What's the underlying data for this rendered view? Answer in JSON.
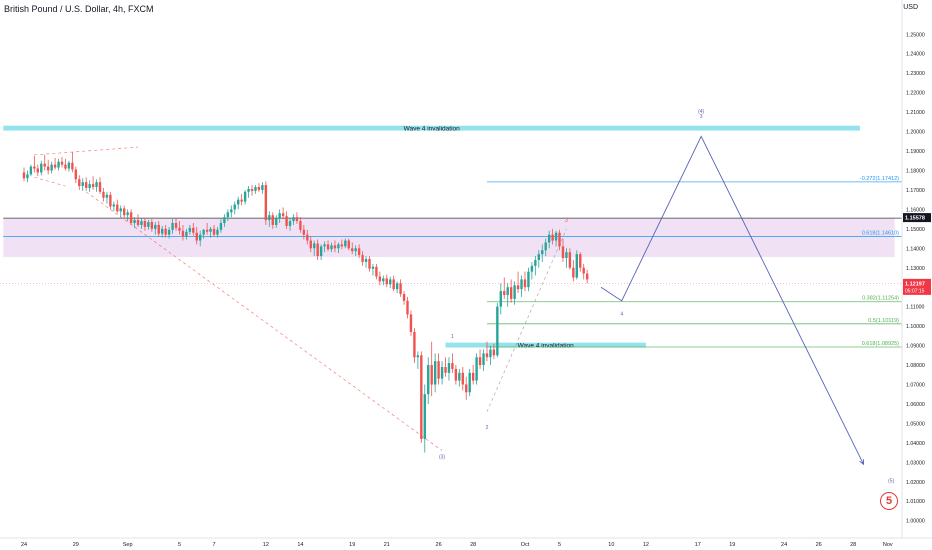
{
  "header": {
    "symbol_title": "British Pound / U.S. Dollar, 4h, FXCM",
    "currency": "USD"
  },
  "colors": {
    "bull": "#26a69a",
    "bear": "#ef5350",
    "invalidation_zone": "#8ee0ea",
    "resistance_zone": "#ead6f0",
    "fib_blue": "#2196f3",
    "fib_green": "#4caf50",
    "wave_path": "#5a62b8",
    "current_price_tag": "#f23645",
    "level_tag": "#131722",
    "logo": "#e03a3a"
  },
  "logo": {
    "glyph": "5"
  },
  "chart_data": {
    "type": "candlestick",
    "title": "British Pound / U.S. Dollar, 4h, FXCM",
    "xlabel": "",
    "ylabel": "USD",
    "ylim": [
      0.9965,
      1.2635
    ],
    "grid": false,
    "y_ticks": [
      "1.25000",
      "1.24000",
      "1.23000",
      "1.22000",
      "1.21000",
      "1.20000",
      "1.19000",
      "1.18000",
      "1.17000",
      "1.16000",
      "1.15000",
      "1.14000",
      "1.13000",
      "1.12000",
      "1.11000",
      "1.10000",
      "1.09000",
      "1.08000",
      "1.07000",
      "1.06000",
      "1.05000",
      "1.04000",
      "1.03000",
      "1.02000",
      "1.01000",
      "1.00000"
    ],
    "x_ticks": [
      {
        "label": "24",
        "i": 0
      },
      {
        "label": "29",
        "i": 15
      },
      {
        "label": "Sep",
        "i": 30
      },
      {
        "label": "5",
        "i": 45
      },
      {
        "label": "7",
        "i": 55
      },
      {
        "label": "12",
        "i": 70
      },
      {
        "label": "14",
        "i": 80
      },
      {
        "label": "19",
        "i": 95
      },
      {
        "label": "21",
        "i": 105
      },
      {
        "label": "26",
        "i": 120
      },
      {
        "label": "28",
        "i": 130
      },
      {
        "label": "Oct",
        "i": 145
      },
      {
        "label": "5",
        "i": 155
      },
      {
        "label": "10",
        "i": 170
      },
      {
        "label": "12",
        "i": 180
      },
      {
        "label": "17",
        "i": 195
      },
      {
        "label": "19",
        "i": 205
      },
      {
        "label": "24",
        "i": 220
      },
      {
        "label": "26",
        "i": 230
      },
      {
        "label": "28",
        "i": 240
      },
      {
        "label": "Nov",
        "i": 250
      }
    ],
    "candles": [
      [
        1.179,
        1.1815,
        1.1745,
        1.176
      ],
      [
        1.176,
        1.18,
        1.174,
        1.178
      ],
      [
        1.178,
        1.183,
        1.177,
        1.182
      ],
      [
        1.182,
        1.1875,
        1.179,
        1.181
      ],
      [
        1.181,
        1.183,
        1.177,
        1.179
      ],
      [
        1.179,
        1.185,
        1.1775,
        1.1835
      ],
      [
        1.1835,
        1.188,
        1.18,
        1.182
      ],
      [
        1.182,
        1.1855,
        1.178,
        1.18
      ],
      [
        1.18,
        1.1845,
        1.1785,
        1.183
      ],
      [
        1.183,
        1.1865,
        1.1805,
        1.1815
      ],
      [
        1.1815,
        1.186,
        1.18,
        1.1845
      ],
      [
        1.1845,
        1.187,
        1.1815,
        1.183
      ],
      [
        1.183,
        1.186,
        1.18,
        1.181
      ],
      [
        1.181,
        1.185,
        1.1795,
        1.184
      ],
      [
        1.184,
        1.1895,
        1.179,
        1.1805
      ],
      [
        1.1805,
        1.182,
        1.1735,
        1.1755
      ],
      [
        1.1755,
        1.1775,
        1.17,
        1.172
      ],
      [
        1.172,
        1.176,
        1.1695,
        1.174
      ],
      [
        1.174,
        1.1765,
        1.1695,
        1.171
      ],
      [
        1.171,
        1.175,
        1.169,
        1.173
      ],
      [
        1.173,
        1.177,
        1.17,
        1.1715
      ],
      [
        1.1715,
        1.1755,
        1.169,
        1.174
      ],
      [
        1.174,
        1.1765,
        1.168,
        1.169
      ],
      [
        1.169,
        1.171,
        1.164,
        1.166
      ],
      [
        1.166,
        1.169,
        1.163,
        1.1675
      ],
      [
        1.1675,
        1.169,
        1.16,
        1.1615
      ],
      [
        1.1615,
        1.164,
        1.159,
        1.1625
      ],
      [
        1.1625,
        1.165,
        1.158,
        1.159
      ],
      [
        1.159,
        1.162,
        1.156,
        1.1605
      ],
      [
        1.1605,
        1.162,
        1.155,
        1.157
      ],
      [
        1.157,
        1.16,
        1.154,
        1.1585
      ],
      [
        1.1585,
        1.16,
        1.152,
        1.153
      ],
      [
        1.153,
        1.156,
        1.1505,
        1.1545
      ],
      [
        1.1545,
        1.1575,
        1.151,
        1.152
      ],
      [
        1.152,
        1.1555,
        1.15,
        1.154
      ],
      [
        1.154,
        1.1555,
        1.149,
        1.151
      ],
      [
        1.151,
        1.1545,
        1.1495,
        1.1535
      ],
      [
        1.1535,
        1.155,
        1.1485,
        1.15
      ],
      [
        1.15,
        1.1535,
        1.147,
        1.152
      ],
      [
        1.152,
        1.154,
        1.146,
        1.1475
      ],
      [
        1.1475,
        1.1515,
        1.1455,
        1.15
      ],
      [
        1.15,
        1.152,
        1.1455,
        1.147
      ],
      [
        1.147,
        1.151,
        1.145,
        1.1495
      ],
      [
        1.1495,
        1.155,
        1.1475,
        1.153
      ],
      [
        1.153,
        1.1555,
        1.149,
        1.1505
      ],
      [
        1.1505,
        1.154,
        1.147,
        1.149
      ],
      [
        1.149,
        1.152,
        1.144,
        1.146
      ],
      [
        1.146,
        1.15,
        1.1445,
        1.1485
      ],
      [
        1.1485,
        1.152,
        1.147,
        1.1505
      ],
      [
        1.1505,
        1.153,
        1.1465,
        1.148
      ],
      [
        1.148,
        1.151,
        1.142,
        1.144
      ],
      [
        1.144,
        1.149,
        1.141,
        1.147
      ],
      [
        1.147,
        1.15,
        1.145,
        1.1495
      ],
      [
        1.1495,
        1.153,
        1.147,
        1.1485
      ],
      [
        1.1485,
        1.151,
        1.1455,
        1.15
      ],
      [
        1.15,
        1.152,
        1.146,
        1.147
      ],
      [
        1.147,
        1.151,
        1.1455,
        1.1495
      ],
      [
        1.1495,
        1.155,
        1.148,
        1.153
      ],
      [
        1.153,
        1.1575,
        1.151,
        1.156
      ],
      [
        1.156,
        1.16,
        1.154,
        1.1585
      ],
      [
        1.1585,
        1.162,
        1.156,
        1.16
      ],
      [
        1.16,
        1.164,
        1.1575,
        1.1625
      ],
      [
        1.1625,
        1.1665,
        1.16,
        1.165
      ],
      [
        1.165,
        1.168,
        1.162,
        1.164
      ],
      [
        1.164,
        1.17,
        1.1625,
        1.169
      ],
      [
        1.169,
        1.172,
        1.166,
        1.1705
      ],
      [
        1.1705,
        1.1725,
        1.167,
        1.1695
      ],
      [
        1.1695,
        1.1725,
        1.168,
        1.1715
      ],
      [
        1.1715,
        1.1735,
        1.169,
        1.17
      ],
      [
        1.17,
        1.174,
        1.168,
        1.1725
      ],
      [
        1.1725,
        1.1745,
        1.152,
        1.1545
      ],
      [
        1.1545,
        1.159,
        1.151,
        1.157
      ],
      [
        1.157,
        1.1585,
        1.15,
        1.152
      ],
      [
        1.152,
        1.157,
        1.1505,
        1.1555
      ],
      [
        1.1555,
        1.16,
        1.153,
        1.158
      ],
      [
        1.158,
        1.161,
        1.155,
        1.1565
      ],
      [
        1.1565,
        1.159,
        1.15,
        1.1515
      ],
      [
        1.1515,
        1.1555,
        1.149,
        1.154
      ],
      [
        1.154,
        1.1575,
        1.152,
        1.156
      ],
      [
        1.156,
        1.1585,
        1.1525,
        1.154
      ],
      [
        1.154,
        1.156,
        1.148,
        1.1495
      ],
      [
        1.1495,
        1.152,
        1.1445,
        1.147
      ],
      [
        1.147,
        1.1495,
        1.142,
        1.144
      ],
      [
        1.144,
        1.146,
        1.138,
        1.14
      ],
      [
        1.14,
        1.144,
        1.136,
        1.1425
      ],
      [
        1.1425,
        1.1445,
        1.134,
        1.136
      ],
      [
        1.136,
        1.142,
        1.134,
        1.141
      ],
      [
        1.141,
        1.1435,
        1.138,
        1.142
      ],
      [
        1.142,
        1.144,
        1.1385,
        1.1395
      ],
      [
        1.1395,
        1.143,
        1.138,
        1.1415
      ],
      [
        1.1415,
        1.144,
        1.138,
        1.14
      ],
      [
        1.14,
        1.143,
        1.1375,
        1.142
      ],
      [
        1.142,
        1.1445,
        1.1395,
        1.141
      ],
      [
        1.141,
        1.145,
        1.14,
        1.144
      ],
      [
        1.144,
        1.145,
        1.139,
        1.14
      ],
      [
        1.14,
        1.143,
        1.137,
        1.1385
      ],
      [
        1.1385,
        1.1415,
        1.136,
        1.14
      ],
      [
        1.14,
        1.142,
        1.135,
        1.1365
      ],
      [
        1.1365,
        1.1385,
        1.131,
        1.133
      ],
      [
        1.133,
        1.136,
        1.13,
        1.1345
      ],
      [
        1.1345,
        1.136,
        1.128,
        1.1295
      ],
      [
        1.1295,
        1.132,
        1.126,
        1.1305
      ],
      [
        1.1305,
        1.132,
        1.124,
        1.1255
      ],
      [
        1.1255,
        1.128,
        1.121,
        1.123
      ],
      [
        1.123,
        1.126,
        1.121,
        1.1245
      ],
      [
        1.1245,
        1.1265,
        1.12,
        1.1215
      ],
      [
        1.1215,
        1.1255,
        1.1195,
        1.124
      ],
      [
        1.124,
        1.126,
        1.118,
        1.119
      ],
      [
        1.119,
        1.123,
        1.117,
        1.122
      ],
      [
        1.122,
        1.124,
        1.115,
        1.1165
      ],
      [
        1.1165,
        1.118,
        1.111,
        1.113
      ],
      [
        1.113,
        1.115,
        1.104,
        1.106
      ],
      [
        1.106,
        1.108,
        1.095,
        1.097
      ],
      [
        1.097,
        1.099,
        1.081,
        1.084
      ],
      [
        1.084,
        1.087,
        1.078,
        1.085
      ],
      [
        1.085,
        1.087,
        1.04,
        1.042
      ],
      [
        1.042,
        1.07,
        1.035,
        1.065
      ],
      [
        1.065,
        1.084,
        1.06,
        1.08
      ],
      [
        1.08,
        1.092,
        1.064,
        1.07
      ],
      [
        1.07,
        1.086,
        1.066,
        1.082
      ],
      [
        1.082,
        1.086,
        1.07,
        1.073
      ],
      [
        1.073,
        1.082,
        1.07,
        1.079
      ],
      [
        1.079,
        1.084,
        1.074,
        1.076
      ],
      [
        1.076,
        1.084,
        1.072,
        1.081
      ],
      [
        1.081,
        1.086,
        1.076,
        1.078
      ],
      [
        1.078,
        1.08,
        1.07,
        1.072
      ],
      [
        1.072,
        1.078,
        1.069,
        1.076
      ],
      [
        1.076,
        1.079,
        1.067,
        1.07
      ],
      [
        1.07,
        1.074,
        1.062,
        1.066
      ],
      [
        1.066,
        1.078,
        1.064,
        1.076
      ],
      [
        1.076,
        1.08,
        1.07,
        1.072
      ],
      [
        1.072,
        1.086,
        1.07,
        1.084
      ],
      [
        1.084,
        1.088,
        1.078,
        1.08
      ],
      [
        1.08,
        1.088,
        1.077,
        1.086
      ],
      [
        1.086,
        1.092,
        1.082,
        1.084
      ],
      [
        1.084,
        1.09,
        1.08,
        1.088
      ],
      [
        1.088,
        1.091,
        1.083,
        1.085
      ],
      [
        1.085,
        1.112,
        1.084,
        1.11
      ],
      [
        1.11,
        1.122,
        1.106,
        1.118
      ],
      [
        1.118,
        1.125,
        1.114,
        1.116
      ],
      [
        1.116,
        1.122,
        1.11,
        1.12
      ],
      [
        1.12,
        1.124,
        1.112,
        1.114
      ],
      [
        1.114,
        1.123,
        1.111,
        1.121
      ],
      [
        1.121,
        1.128,
        1.117,
        1.119
      ],
      [
        1.119,
        1.126,
        1.115,
        1.124
      ],
      [
        1.124,
        1.128,
        1.118,
        1.12
      ],
      [
        1.12,
        1.13,
        1.118,
        1.128
      ],
      [
        1.128,
        1.133,
        1.124,
        1.131
      ],
      [
        1.131,
        1.136,
        1.126,
        1.134
      ],
      [
        1.134,
        1.139,
        1.13,
        1.137
      ],
      [
        1.137,
        1.142,
        1.133,
        1.139
      ],
      [
        1.139,
        1.145,
        1.136,
        1.143
      ],
      [
        1.143,
        1.149,
        1.14,
        1.147
      ],
      [
        1.147,
        1.15,
        1.142,
        1.144
      ],
      [
        1.144,
        1.149,
        1.141,
        1.148
      ],
      [
        1.148,
        1.1495,
        1.139,
        1.141
      ],
      [
        1.141,
        1.145,
        1.133,
        1.135
      ],
      [
        1.135,
        1.14,
        1.13,
        1.138
      ],
      [
        1.138,
        1.14,
        1.129,
        1.13
      ],
      [
        1.13,
        1.134,
        1.123,
        1.125
      ],
      [
        1.125,
        1.139,
        1.124,
        1.137
      ],
      [
        1.137,
        1.138,
        1.128,
        1.13
      ],
      [
        1.13,
        1.132,
        1.124,
        1.127
      ],
      [
        1.127,
        1.129,
        1.122,
        1.124
      ]
    ],
    "zones": [
      {
        "label": "Wave 4 invalidation",
        "y1": 1.2005,
        "y2": 1.203,
        "i_start": -6,
        "i_end": 242
      },
      {
        "label": "",
        "y1": 1.1355,
        "y2": 1.1555,
        "i_start": -6,
        "i_end": 252
      },
      {
        "label": "Wave 4 invalidation",
        "y1": 1.089,
        "y2": 1.0915,
        "i_start": 122,
        "i_end": 180
      }
    ],
    "levels": [
      {
        "label": "-0.272(1.17412)",
        "value": 1.17412,
        "i_start": 134,
        "color": "blue"
      },
      {
        "label": "0.618(1.14610)",
        "value": 1.1461,
        "i_start": -6,
        "color": "blue"
      },
      {
        "label": "0.382(1.11254)",
        "value": 1.11254,
        "i_start": 134,
        "color": "green"
      },
      {
        "label": "0.5(1.10119)",
        "value": 1.10119,
        "i_start": 134,
        "color": "green"
      },
      {
        "label": "0.618(1.08925)",
        "value": 1.08925,
        "i_start": 134,
        "color": "green"
      },
      {
        "label": "",
        "value": 1.1555,
        "i_start": -6,
        "color": "black"
      }
    ],
    "projection": [
      {
        "i": 167,
        "y": 1.12
      },
      {
        "i": 173,
        "y": 1.113
      },
      {
        "i": 196,
        "y": 1.1975
      },
      {
        "i": 243,
        "y": 1.029
      }
    ],
    "trendlines": [
      {
        "from": {
          "i": 3,
          "y": 1.188
        },
        "to": {
          "i": 33,
          "y": 1.192
        },
        "style": "dashed",
        "color": "bear"
      },
      {
        "from": {
          "i": 3,
          "y": 1.1765
        },
        "to": {
          "i": 12,
          "y": 1.172
        },
        "style": "dashed",
        "color": "bear"
      },
      {
        "from": {
          "i": 18,
          "y": 1.169
        },
        "to": {
          "i": 121,
          "y": 1.036
        },
        "style": "dashed",
        "color": "bear"
      },
      {
        "from": {
          "i": 134,
          "y": 1.056
        },
        "to": {
          "i": 157,
          "y": 1.15
        },
        "style": "dashed",
        "color": "neutral"
      }
    ],
    "wave_labels": [
      {
        "text": "(4)",
        "i": 196,
        "y": 1.2095
      },
      {
        "text": "3",
        "i": 196,
        "y": 1.207
      },
      {
        "text": "1",
        "i": 124,
        "y": 1.094
      },
      {
        "text": "2",
        "i": 134,
        "y": 1.047
      },
      {
        "text": "3",
        "i": 157,
        "y": 1.1535
      },
      {
        "text": "4",
        "i": 173,
        "y": 1.1055
      },
      {
        "text": "(3)",
        "i": 121,
        "y": 1.032
      },
      {
        "text": "(5)",
        "i": 251,
        "y": 1.0195
      },
      {
        "text": "5",
        "i": 251,
        "y": 1.0175
      }
    ],
    "price_tags": [
      {
        "label": "1.15578",
        "value": 1.15578,
        "kind": "level"
      },
      {
        "label": "1.12197",
        "value": 1.12197,
        "kind": "current"
      },
      {
        "label": "05:07:15",
        "value": 1.12197,
        "kind": "countdown"
      }
    ]
  }
}
